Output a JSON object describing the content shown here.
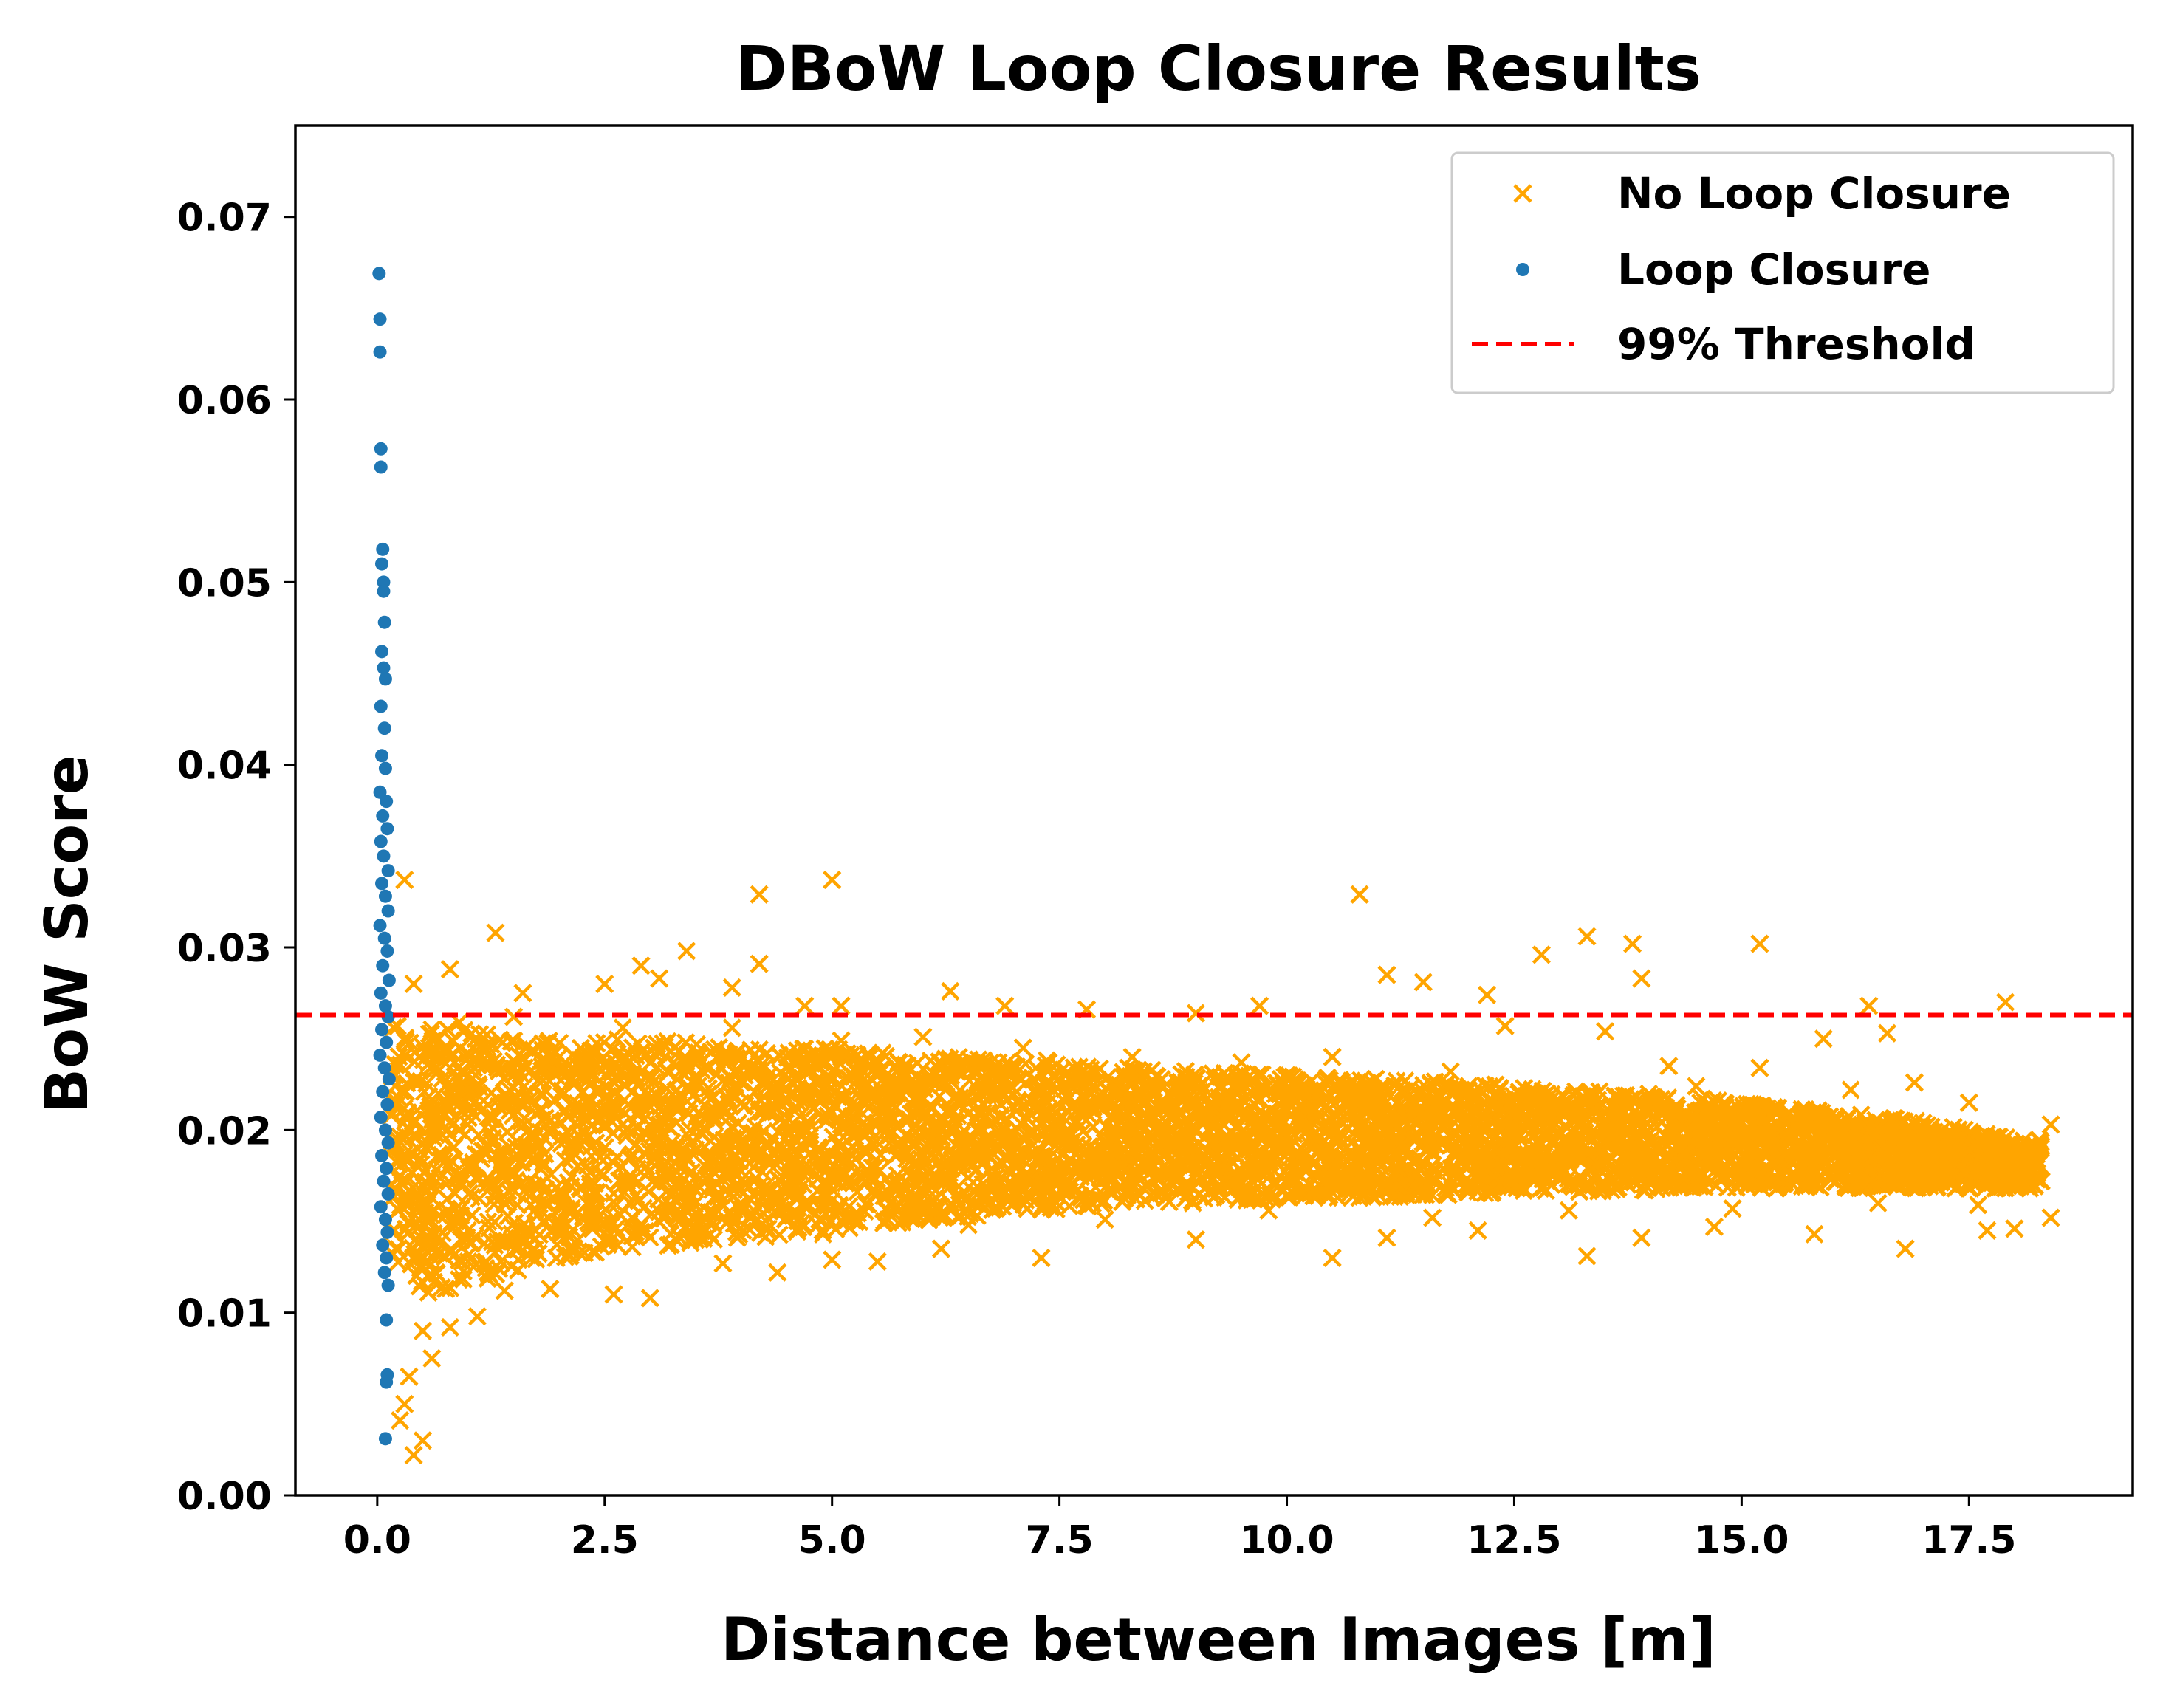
{
  "chart_data": {
    "type": "scatter",
    "title": "DBoW Loop Closure Results",
    "xlabel": "Distance between Images [m]",
    "ylabel": "BoW Score",
    "xlim": [
      -0.9,
      19.3
    ],
    "ylim": [
      0.0,
      0.075
    ],
    "xticks": [
      0.0,
      2.5,
      5.0,
      7.5,
      10.0,
      12.5,
      15.0,
      17.5
    ],
    "xtick_labels": [
      "0.0",
      "2.5",
      "5.0",
      "7.5",
      "10.0",
      "12.5",
      "15.0",
      "17.5"
    ],
    "yticks": [
      0.0,
      0.01,
      0.02,
      0.03,
      0.04,
      0.05,
      0.06,
      0.07
    ],
    "ytick_labels": [
      "0.00",
      "0.01",
      "0.02",
      "0.03",
      "0.04",
      "0.05",
      "0.06",
      "0.07"
    ],
    "grid": false,
    "legend_position": "top-right",
    "threshold": {
      "name": "99% Threshold",
      "y": 0.0263,
      "color": "#ff0000",
      "style": "dashed"
    },
    "series": [
      {
        "name": "No Loop Closure",
        "marker": "x",
        "color": "#ffa500",
        "points": [
          [
            0.3,
            0.0337
          ],
          [
            1.3,
            0.0308
          ],
          [
            0.8,
            0.0288
          ],
          [
            2.9,
            0.029
          ],
          [
            3.4,
            0.0298
          ],
          [
            4.2,
            0.0329
          ],
          [
            4.2,
            0.0291
          ],
          [
            5.0,
            0.0337
          ],
          [
            1.6,
            0.0275
          ],
          [
            2.5,
            0.028
          ],
          [
            3.1,
            0.0283
          ],
          [
            3.9,
            0.0278
          ],
          [
            4.7,
            0.0268
          ],
          [
            5.1,
            0.0268
          ],
          [
            6.3,
            0.0276
          ],
          [
            6.9,
            0.0268
          ],
          [
            7.8,
            0.0266
          ],
          [
            9.0,
            0.0264
          ],
          [
            9.7,
            0.0268
          ],
          [
            10.8,
            0.0329
          ],
          [
            11.1,
            0.0285
          ],
          [
            11.5,
            0.0281
          ],
          [
            12.2,
            0.0274
          ],
          [
            12.8,
            0.0296
          ],
          [
            13.3,
            0.0306
          ],
          [
            13.8,
            0.0302
          ],
          [
            13.9,
            0.0283
          ],
          [
            15.2,
            0.0302
          ],
          [
            16.4,
            0.0268
          ],
          [
            17.9,
            0.027
          ],
          [
            0.2,
            0.023
          ],
          [
            0.3,
            0.005
          ],
          [
            0.4,
            0.0022
          ],
          [
            0.5,
            0.003
          ],
          [
            0.25,
            0.0041
          ],
          [
            0.35,
            0.0065
          ],
          [
            0.6,
            0.0075
          ],
          [
            0.5,
            0.009
          ],
          [
            0.8,
            0.0092
          ],
          [
            1.1,
            0.0098
          ],
          [
            1.4,
            0.0112
          ],
          [
            1.9,
            0.0113
          ],
          [
            2.6,
            0.011
          ],
          [
            3.0,
            0.0108
          ],
          [
            3.8,
            0.0127
          ],
          [
            4.4,
            0.0122
          ],
          [
            5.0,
            0.0129
          ],
          [
            5.5,
            0.0128
          ],
          [
            6.2,
            0.0135
          ],
          [
            7.3,
            0.013
          ],
          [
            9.0,
            0.014
          ],
          [
            10.5,
            0.013
          ],
          [
            11.1,
            0.0141
          ],
          [
            12.1,
            0.0145
          ],
          [
            13.3,
            0.0131
          ],
          [
            13.9,
            0.0141
          ],
          [
            14.7,
            0.0147
          ],
          [
            15.8,
            0.0143
          ],
          [
            16.8,
            0.0135
          ],
          [
            17.7,
            0.0145
          ],
          [
            18.0,
            0.0146
          ],
          [
            18.4,
            0.0152
          ],
          [
            18.4,
            0.0203
          ],
          [
            18.1,
            0.019
          ],
          [
            17.5,
            0.0215
          ],
          [
            16.9,
            0.0226
          ],
          [
            16.6,
            0.0253
          ],
          [
            15.9,
            0.025
          ],
          [
            15.2,
            0.0234
          ],
          [
            14.2,
            0.0235
          ],
          [
            13.5,
            0.0254
          ],
          [
            12.4,
            0.0257
          ],
          [
            11.8,
            0.0232
          ],
          [
            10.5,
            0.024
          ],
          [
            9.5,
            0.0237
          ],
          [
            8.3,
            0.024
          ],
          [
            7.1,
            0.0245
          ],
          [
            6.0,
            0.0251
          ],
          [
            5.1,
            0.0249
          ],
          [
            3.9,
            0.0256
          ],
          [
            2.7,
            0.0256
          ],
          [
            1.5,
            0.0262
          ],
          [
            0.9,
            0.0259
          ],
          [
            0.4,
            0.028
          ],
          [
            0.6,
            0.0255
          ],
          [
            1.0,
            0.0242
          ],
          [
            2.0,
            0.024
          ],
          [
            3.2,
            0.0232
          ],
          [
            4.5,
            0.0234
          ],
          [
            6.6,
            0.0236
          ],
          [
            8.8,
            0.0226
          ],
          [
            10.0,
            0.023
          ],
          [
            12.0,
            0.0224
          ],
          [
            14.5,
            0.0224
          ],
          [
            16.2,
            0.0222
          ],
          [
            0.5,
            0.014
          ],
          [
            1.0,
            0.0128
          ],
          [
            1.7,
            0.013
          ],
          [
            2.4,
            0.0133
          ],
          [
            3.5,
            0.014
          ],
          [
            4.9,
            0.0143
          ],
          [
            6.5,
            0.0148
          ],
          [
            8.0,
            0.0151
          ],
          [
            9.8,
            0.0156
          ],
          [
            11.6,
            0.0152
          ],
          [
            13.1,
            0.0156
          ],
          [
            14.9,
            0.0157
          ],
          [
            16.5,
            0.016
          ],
          [
            17.6,
            0.0159
          ]
        ]
      },
      {
        "name": "Loop Closure",
        "marker": "o",
        "color": "#1f77b4",
        "points": [
          [
            0.02,
            0.0669
          ],
          [
            0.03,
            0.0644
          ],
          [
            0.03,
            0.0626
          ],
          [
            0.04,
            0.0573
          ],
          [
            0.04,
            0.0563
          ],
          [
            0.06,
            0.0518
          ],
          [
            0.05,
            0.051
          ],
          [
            0.07,
            0.05
          ],
          [
            0.07,
            0.0495
          ],
          [
            0.08,
            0.0478
          ],
          [
            0.05,
            0.0462
          ],
          [
            0.07,
            0.0453
          ],
          [
            0.09,
            0.0447
          ],
          [
            0.04,
            0.0432
          ],
          [
            0.08,
            0.042
          ],
          [
            0.05,
            0.0405
          ],
          [
            0.09,
            0.0398
          ],
          [
            0.03,
            0.0385
          ],
          [
            0.1,
            0.038
          ],
          [
            0.06,
            0.0372
          ],
          [
            0.11,
            0.0365
          ],
          [
            0.04,
            0.0358
          ],
          [
            0.07,
            0.035
          ],
          [
            0.12,
            0.0342
          ],
          [
            0.05,
            0.0335
          ],
          [
            0.09,
            0.0328
          ],
          [
            0.12,
            0.032
          ],
          [
            0.03,
            0.0312
          ],
          [
            0.08,
            0.0305
          ],
          [
            0.11,
            0.0298
          ],
          [
            0.06,
            0.029
          ],
          [
            0.13,
            0.0282
          ],
          [
            0.04,
            0.0275
          ],
          [
            0.09,
            0.0268
          ],
          [
            0.12,
            0.0262
          ],
          [
            0.05,
            0.0255
          ],
          [
            0.1,
            0.0248
          ],
          [
            0.03,
            0.0241
          ],
          [
            0.08,
            0.0234
          ],
          [
            0.13,
            0.0228
          ],
          [
            0.06,
            0.0221
          ],
          [
            0.11,
            0.0214
          ],
          [
            0.04,
            0.0207
          ],
          [
            0.09,
            0.02
          ],
          [
            0.12,
            0.0193
          ],
          [
            0.05,
            0.0186
          ],
          [
            0.1,
            0.0179
          ],
          [
            0.07,
            0.0172
          ],
          [
            0.12,
            0.0165
          ],
          [
            0.04,
            0.0158
          ],
          [
            0.09,
            0.0151
          ],
          [
            0.11,
            0.0144
          ],
          [
            0.06,
            0.0137
          ],
          [
            0.1,
            0.013
          ],
          [
            0.08,
            0.0122
          ],
          [
            0.12,
            0.0115
          ],
          [
            0.1,
            0.0096
          ],
          [
            0.11,
            0.0066
          ],
          [
            0.1,
            0.0062
          ],
          [
            0.09,
            0.0031
          ]
        ]
      }
    ],
    "dense_region": {
      "note_for": "No Loop Closure",
      "bands": [
        [
          0.15,
          0.013,
          0.026
        ],
        [
          0.5,
          0.011,
          0.0255
        ],
        [
          1.0,
          0.0115,
          0.0255
        ],
        [
          2.0,
          0.013,
          0.025
        ],
        [
          3.0,
          0.0135,
          0.025
        ],
        [
          4.0,
          0.014,
          0.0245
        ],
        [
          5.0,
          0.0145,
          0.0245
        ],
        [
          6.0,
          0.015,
          0.024
        ],
        [
          7.0,
          0.0155,
          0.024
        ],
        [
          8.0,
          0.0158,
          0.0235
        ],
        [
          9.0,
          0.016,
          0.0232
        ],
        [
          10.0,
          0.0162,
          0.023
        ],
        [
          11.0,
          0.0163,
          0.0228
        ],
        [
          12.0,
          0.0165,
          0.0226
        ],
        [
          13.0,
          0.0166,
          0.0222
        ],
        [
          14.0,
          0.0167,
          0.022
        ],
        [
          15.0,
          0.0168,
          0.0215
        ],
        [
          16.0,
          0.0168,
          0.021
        ],
        [
          17.0,
          0.0168,
          0.0205
        ],
        [
          18.0,
          0.0168,
          0.0195
        ]
      ]
    }
  }
}
